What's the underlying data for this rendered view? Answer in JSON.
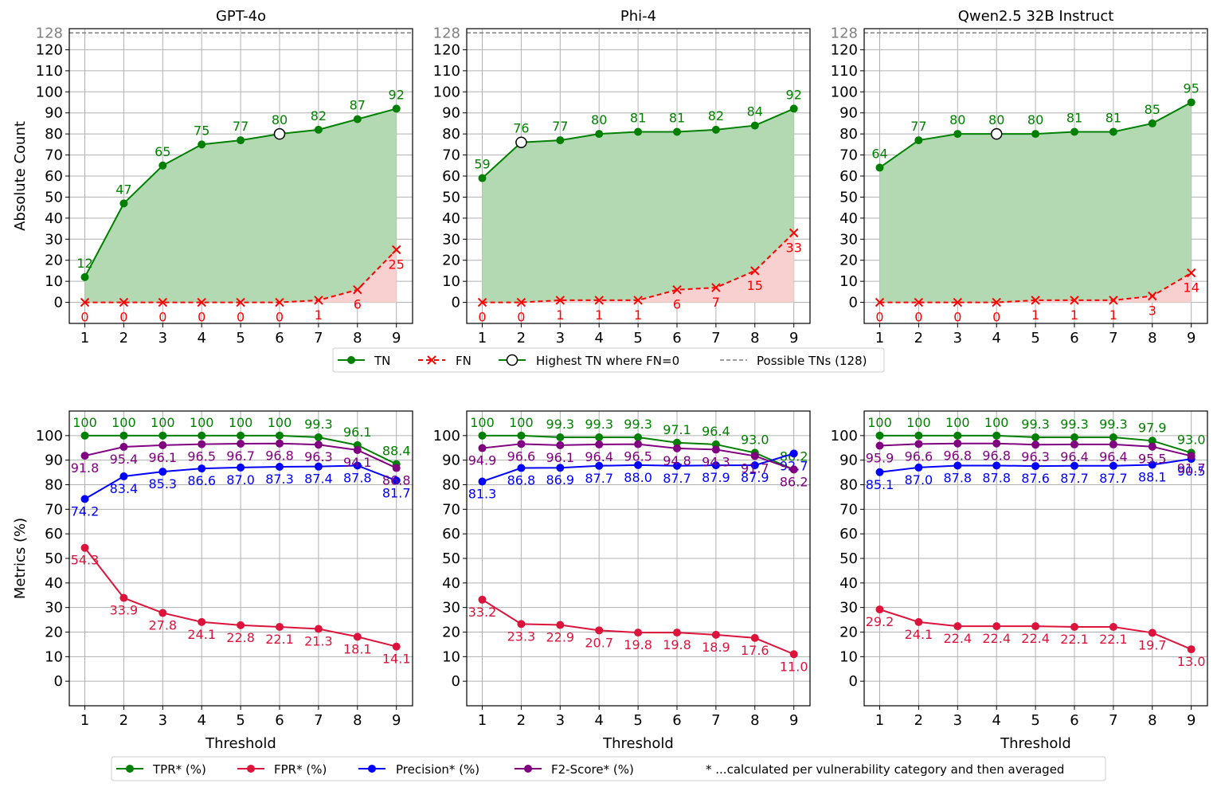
{
  "colors": {
    "tn": "#008000",
    "fn": "#ff0000",
    "tn_fill": "#b3d9b3",
    "fn_fill": "#f8d0d0",
    "possible": "#808080",
    "tpr": "#008000",
    "fpr": "#dc143c",
    "precision": "#0000ff",
    "f2": "#800080",
    "grid": "#b0b0b0"
  },
  "chart_data": [
    {
      "type": "line",
      "title": "GPT-4o",
      "xlabel": "",
      "ylabel": "Absolute Count",
      "x": [
        1,
        2,
        3,
        4,
        5,
        6,
        7,
        8,
        9
      ],
      "ylim": [
        -10,
        130
      ],
      "yticks": [
        "0",
        "10",
        "20",
        "30",
        "40",
        "50",
        "60",
        "70",
        "80",
        "90",
        "100",
        "110",
        "120"
      ],
      "possible_tns": 128,
      "possible_label": "128",
      "series": [
        {
          "name": "TN",
          "values": [
            12,
            47,
            65,
            75,
            77,
            80,
            82,
            87,
            92
          ]
        },
        {
          "name": "FN",
          "values": [
            0,
            0,
            0,
            0,
            0,
            0,
            1,
            6,
            25
          ]
        }
      ],
      "highest_tn_fn0_x": 6,
      "tn_labels": [
        "12",
        "47",
        "65",
        "75",
        "77",
        "80",
        "82",
        "87",
        "92"
      ],
      "fn_labels": [
        "0",
        "0",
        "0",
        "0",
        "0",
        "0",
        "1",
        "6",
        "25"
      ]
    },
    {
      "type": "line",
      "title": "Phi-4",
      "xlabel": "",
      "ylabel": "",
      "x": [
        1,
        2,
        3,
        4,
        5,
        6,
        7,
        8,
        9
      ],
      "ylim": [
        -10,
        130
      ],
      "yticks": [
        "0",
        "10",
        "20",
        "30",
        "40",
        "50",
        "60",
        "70",
        "80",
        "90",
        "100",
        "110",
        "120"
      ],
      "possible_tns": 128,
      "possible_label": "128",
      "series": [
        {
          "name": "TN",
          "values": [
            59,
            76,
            77,
            80,
            81,
            81,
            82,
            84,
            92
          ]
        },
        {
          "name": "FN",
          "values": [
            0,
            0,
            1,
            1,
            1,
            6,
            7,
            15,
            33
          ]
        }
      ],
      "highest_tn_fn0_x": 2,
      "tn_labels": [
        "59",
        "76",
        "77",
        "80",
        "81",
        "81",
        "82",
        "84",
        "92"
      ],
      "fn_labels": [
        "0",
        "0",
        "1",
        "1",
        "1",
        "6",
        "7",
        "15",
        "33"
      ]
    },
    {
      "type": "line",
      "title": "Qwen2.5 32B Instruct",
      "xlabel": "",
      "ylabel": "",
      "x": [
        1,
        2,
        3,
        4,
        5,
        6,
        7,
        8,
        9
      ],
      "ylim": [
        -10,
        130
      ],
      "yticks": [
        "0",
        "10",
        "20",
        "30",
        "40",
        "50",
        "60",
        "70",
        "80",
        "90",
        "100",
        "110",
        "120"
      ],
      "possible_tns": 128,
      "possible_label": "128",
      "series": [
        {
          "name": "TN",
          "values": [
            64,
            77,
            80,
            80,
            80,
            81,
            81,
            85,
            95
          ]
        },
        {
          "name": "FN",
          "values": [
            0,
            0,
            0,
            0,
            1,
            1,
            1,
            3,
            14
          ]
        }
      ],
      "highest_tn_fn0_x": 4,
      "tn_labels": [
        "64",
        "77",
        "80",
        "80",
        "80",
        "81",
        "81",
        "85",
        "95"
      ],
      "fn_labels": [
        "0",
        "0",
        "0",
        "0",
        "1",
        "1",
        "1",
        "3",
        "14"
      ]
    },
    {
      "type": "line",
      "title": "",
      "xlabel": "Threshold",
      "ylabel": "Metrics (%)",
      "x": [
        1,
        2,
        3,
        4,
        5,
        6,
        7,
        8,
        9
      ],
      "ylim": [
        -10,
        110
      ],
      "yticks": [
        "0",
        "10",
        "20",
        "30",
        "40",
        "50",
        "60",
        "70",
        "80",
        "90",
        "100"
      ],
      "series": [
        {
          "name": "TPR* (%)",
          "values": [
            100,
            100,
            100,
            100,
            100,
            100,
            99.3,
            96.1,
            88.4
          ],
          "labels": [
            "100",
            "100",
            "100",
            "100",
            "100",
            "100",
            "99.3",
            "96.1",
            "88.4"
          ]
        },
        {
          "name": "FPR* (%)",
          "values": [
            54.3,
            33.9,
            27.8,
            24.1,
            22.8,
            22.1,
            21.3,
            18.1,
            14.1
          ],
          "labels": [
            "54.3",
            "33.9",
            "27.8",
            "24.1",
            "22.8",
            "22.1",
            "21.3",
            "18.1",
            "14.1"
          ]
        },
        {
          "name": "Precision* (%)",
          "values": [
            74.2,
            83.4,
            85.3,
            86.6,
            87.0,
            87.3,
            87.4,
            87.8,
            81.7
          ],
          "labels": [
            "74.2",
            "83.4",
            "85.3",
            "86.6",
            "87.0",
            "87.3",
            "87.4",
            "87.8",
            "81.7"
          ]
        },
        {
          "name": "F2-Score* (%)",
          "values": [
            91.8,
            95.4,
            96.1,
            96.5,
            96.7,
            96.8,
            96.3,
            94.1,
            86.8
          ],
          "labels": [
            "91.8",
            "95.4",
            "96.1",
            "96.5",
            "96.7",
            "96.8",
            "96.3",
            "94.1",
            "86.8"
          ]
        }
      ]
    },
    {
      "type": "line",
      "title": "",
      "xlabel": "Threshold",
      "ylabel": "",
      "x": [
        1,
        2,
        3,
        4,
        5,
        6,
        7,
        8,
        9
      ],
      "ylim": [
        -10,
        110
      ],
      "yticks": [
        "0",
        "10",
        "20",
        "30",
        "40",
        "50",
        "60",
        "70",
        "80",
        "90",
        "100"
      ],
      "series": [
        {
          "name": "TPR* (%)",
          "values": [
            100,
            100,
            99.3,
            99.3,
            99.3,
            97.1,
            96.4,
            93.0,
            86.2
          ],
          "labels": [
            "100",
            "100",
            "99.3",
            "99.3",
            "99.3",
            "97.1",
            "96.4",
            "93.0",
            "86.2"
          ]
        },
        {
          "name": "FPR* (%)",
          "values": [
            33.2,
            23.3,
            22.9,
            20.7,
            19.8,
            19.8,
            18.9,
            17.6,
            11.0
          ],
          "labels": [
            "33.2",
            "23.3",
            "22.9",
            "20.7",
            "19.8",
            "19.8",
            "18.9",
            "17.6",
            "11.0"
          ]
        },
        {
          "name": "Precision* (%)",
          "values": [
            81.3,
            86.8,
            86.9,
            87.7,
            88.0,
            87.7,
            87.9,
            87.9,
            92.7
          ],
          "labels": [
            "81.3",
            "86.8",
            "86.9",
            "87.7",
            "88.0",
            "87.7",
            "87.9",
            "87.9",
            "92.7"
          ]
        },
        {
          "name": "F2-Score* (%)",
          "values": [
            94.9,
            96.6,
            96.1,
            96.4,
            96.5,
            94.8,
            94.3,
            91.7,
            86.2
          ],
          "labels": [
            "94.9",
            "96.6",
            "96.1",
            "96.4",
            "96.5",
            "94.8",
            "94.3",
            "91.7",
            "86.2"
          ]
        }
      ]
    },
    {
      "type": "line",
      "title": "",
      "xlabel": "Threshold",
      "ylabel": "",
      "x": [
        1,
        2,
        3,
        4,
        5,
        6,
        7,
        8,
        9
      ],
      "ylim": [
        -10,
        110
      ],
      "yticks": [
        "0",
        "10",
        "20",
        "30",
        "40",
        "50",
        "60",
        "70",
        "80",
        "90",
        "100"
      ],
      "series": [
        {
          "name": "TPR* (%)",
          "values": [
            100,
            100,
            100,
            100,
            99.3,
            99.3,
            99.3,
            97.9,
            93.0
          ],
          "labels": [
            "100",
            "100",
            "100",
            "100",
            "99.3",
            "99.3",
            "99.3",
            "97.9",
            "93.0"
          ]
        },
        {
          "name": "FPR* (%)",
          "values": [
            29.2,
            24.1,
            22.4,
            22.4,
            22.4,
            22.1,
            22.1,
            19.7,
            13.0
          ],
          "labels": [
            "29.2",
            "24.1",
            "22.4",
            "22.4",
            "22.4",
            "22.1",
            "22.1",
            "19.7",
            "13.0"
          ]
        },
        {
          "name": "Precision* (%)",
          "values": [
            85.1,
            87.0,
            87.8,
            87.8,
            87.6,
            87.7,
            87.7,
            88.1,
            90.5
          ],
          "labels": [
            "85.1",
            "87.0",
            "87.8",
            "87.8",
            "87.6",
            "87.7",
            "87.7",
            "88.1",
            "90.5"
          ]
        },
        {
          "name": "F2-Score* (%)",
          "values": [
            95.9,
            96.6,
            96.8,
            96.8,
            96.3,
            96.4,
            96.4,
            95.5,
            91.7
          ],
          "labels": [
            "95.9",
            "96.6",
            "96.8",
            "96.8",
            "96.3",
            "96.4",
            "96.4",
            "95.5",
            "91.7"
          ]
        }
      ]
    }
  ],
  "legend_top": {
    "tn": "TN",
    "fn": "FN",
    "highest": "Highest TN where FN=0",
    "possible": "Possible TNs (128)"
  },
  "legend_bottom": {
    "tpr": "TPR* (%)",
    "fpr": "FPR* (%)",
    "precision": "Precision* (%)",
    "f2": "F2-Score* (%)",
    "note": "* ...calculated per vulnerability category and then averaged"
  }
}
